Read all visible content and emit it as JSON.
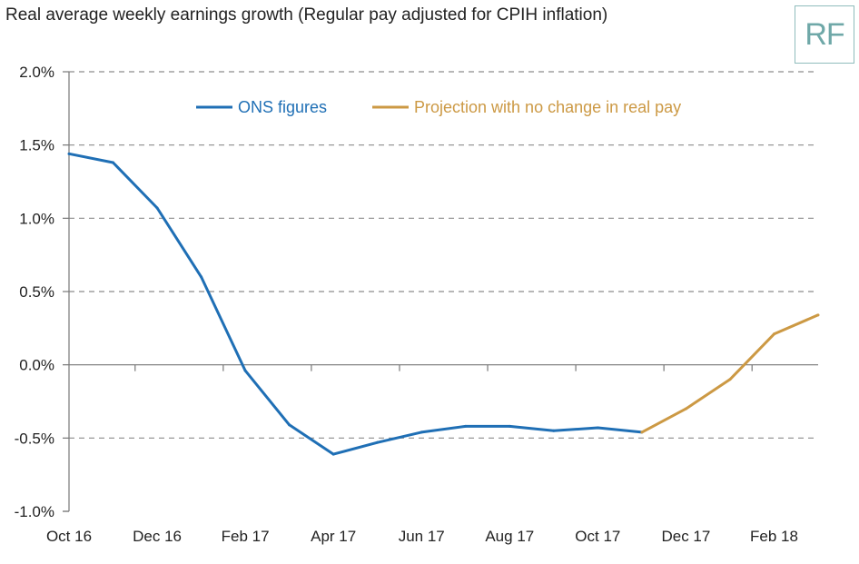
{
  "chart_data": {
    "type": "line",
    "title": "Real average weekly earnings growth (Regular pay adjusted for CPIH inflation)",
    "xlabel": "",
    "ylabel": "",
    "ylim": [
      -1.0,
      2.0
    ],
    "yticks": [
      "2.0%",
      "1.5%",
      "1.0%",
      "0.5%",
      "0.0%",
      "-0.5%",
      "-1.0%"
    ],
    "ytick_values": [
      2.0,
      1.5,
      1.0,
      0.5,
      0.0,
      -0.5,
      -1.0
    ],
    "x": [
      "Oct 16",
      "Nov 16",
      "Dec 16",
      "Jan 17",
      "Feb 17",
      "Mar 17",
      "Apr 17",
      "May 17",
      "Jun 17",
      "Jul 17",
      "Aug 17",
      "Sep 17",
      "Oct 17",
      "Nov 17",
      "Dec 17",
      "Jan 18",
      "Feb 18",
      "Mar 18"
    ],
    "xtick_labels": [
      "Oct 16",
      "Dec 16",
      "Feb 17",
      "Apr 17",
      "Jun 17",
      "Aug 17",
      "Oct 17",
      "Dec 17",
      "Feb 18"
    ],
    "grid": "horizontal dashed",
    "legend_position": "top",
    "series": [
      {
        "name": "ONS figures",
        "color": "#1f6fb5",
        "values": [
          1.44,
          1.38,
          1.07,
          0.6,
          -0.04,
          -0.41,
          -0.61,
          -0.53,
          -0.46,
          -0.42,
          -0.42,
          -0.45,
          -0.43,
          -0.46,
          null,
          null,
          null,
          null
        ]
      },
      {
        "name": "Projection with no change in real pay",
        "color": "#cc9944",
        "values": [
          null,
          null,
          null,
          null,
          null,
          null,
          null,
          null,
          null,
          null,
          null,
          null,
          null,
          -0.46,
          -0.3,
          -0.1,
          0.21,
          0.34
        ]
      }
    ]
  },
  "logo": {
    "text": "RF"
  }
}
